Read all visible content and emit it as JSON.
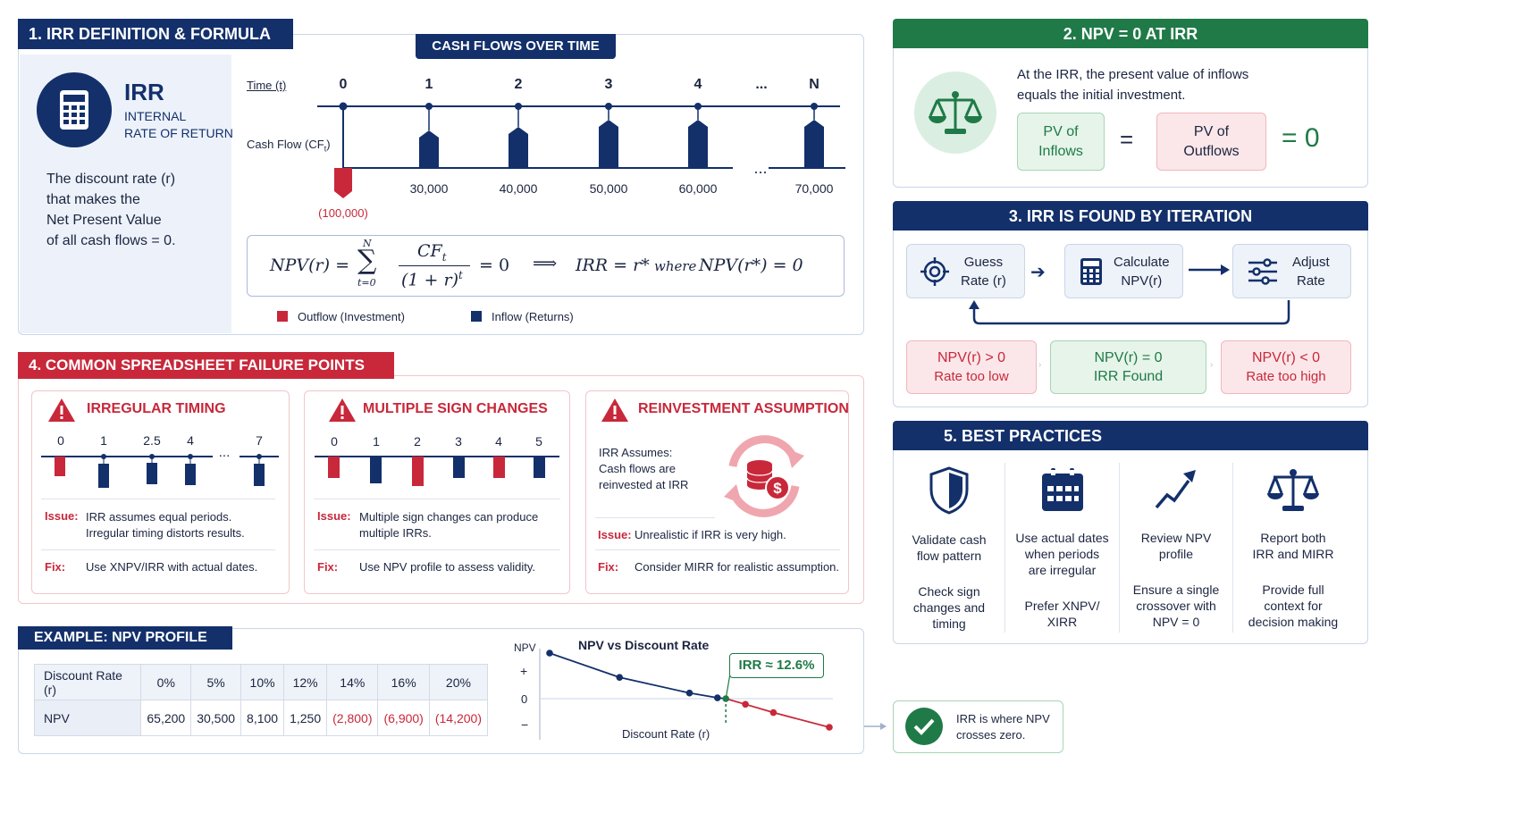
{
  "section1": {
    "title": "1. IRR DEFINITION & FORMULA",
    "irr_title": "IRR",
    "irr_sub1": "INTERNAL",
    "irr_sub2": "RATE OF RETURN",
    "desc": [
      "The discount rate (r)",
      "that makes the",
      "Net Present Value",
      "of all cash flows = 0."
    ],
    "cashflows_title": "CASH FLOWS OVER TIME",
    "time_label": "Time (t)",
    "cf_label": "Cash Flow (CF",
    "cf_sub": "t",
    "cf_close": ")",
    "times": [
      "0",
      "1",
      "2",
      "3",
      "4",
      "...",
      "N"
    ],
    "cf_values": [
      "(100,000)",
      "30,000",
      "40,000",
      "50,000",
      "60,000",
      "...",
      "70,000"
    ],
    "formula": {
      "lhs": "NPV(r) =",
      "sum_top": "N",
      "sum_bottom": "t=0",
      "num": "CF",
      "num_sub": "t",
      "den": "(1 + r)",
      "den_sup": "t",
      "eq0": "= 0",
      "arrow": "⟹",
      "rhs1": "IRR = r*",
      "where": "where",
      "rhs2": "NPV(r*) = 0"
    },
    "legend_out": "Outflow (Investment)",
    "legend_in": "Inflow (Returns)"
  },
  "section2": {
    "title": "2. NPV = 0 AT IRR",
    "text1": "At the IRR, the present value of inflows",
    "text2": "equals the initial investment.",
    "pv_in": [
      "PV of",
      "Inflows"
    ],
    "eq": "=",
    "pv_out": [
      "PV of",
      "Outflows"
    ],
    "result": "= 0"
  },
  "section3": {
    "title": "3. IRR IS FOUND BY ITERATION",
    "steps": [
      [
        "Guess",
        "Rate (r)"
      ],
      [
        "Calculate",
        "NPV(r)"
      ],
      [
        "Adjust",
        "Rate"
      ]
    ],
    "outcomes": [
      [
        "NPV(r) > 0",
        "Rate too low"
      ],
      [
        "NPV(r) = 0",
        "IRR Found"
      ],
      [
        "NPV(r) < 0",
        "Rate too high"
      ]
    ]
  },
  "section4": {
    "title": "4. COMMON SPREADSHEET FAILURE POINTS",
    "cards": [
      {
        "title": "IRREGULAR TIMING",
        "ticks": [
          "0",
          "1",
          "2.5",
          "4",
          "...",
          "7"
        ],
        "issue_label": "Issue:",
        "issue": [
          "IRR assumes equal periods.",
          "Irregular timing distorts results."
        ],
        "fix_label": "Fix:",
        "fix": "Use XNPV/IRR with actual dates."
      },
      {
        "title": "MULTIPLE SIGN CHANGES",
        "ticks": [
          "0",
          "1",
          "2",
          "3",
          "4",
          "5"
        ],
        "issue_label": "Issue:",
        "issue": [
          "Multiple sign changes can produce",
          "multiple IRRs."
        ],
        "fix_label": "Fix:",
        "fix": "Use NPV profile to assess validity."
      },
      {
        "title": "REINVESTMENT ASSUMPTION",
        "assume": [
          "IRR Assumes:",
          "Cash flows are",
          "reinvested at IRR"
        ],
        "issue_label": "Issue:",
        "issue": [
          "Unrealistic if IRR is very high."
        ],
        "fix_label": "Fix:",
        "fix": "Consider MIRR for realistic assumption."
      }
    ]
  },
  "section5": {
    "title": "5. BEST PRACTICES",
    "items": [
      {
        "icon": "shield-icon",
        "head": [
          "Validate cash",
          "flow pattern"
        ],
        "body": [
          "Check sign",
          "changes and",
          "timing"
        ]
      },
      {
        "icon": "calendar-icon",
        "head": [
          "Use actual dates",
          "when periods",
          "are irregular"
        ],
        "body": [
          "Prefer XNPV/",
          "XIRR"
        ]
      },
      {
        "icon": "trend-icon",
        "head": [
          "Review NPV",
          "profile"
        ],
        "body": [
          "Ensure a single",
          "crossover with",
          "NPV = 0"
        ]
      },
      {
        "icon": "scales-icon",
        "head": [
          "Report both",
          "IRR and MIRR"
        ],
        "body": [
          "Provide full",
          "context for",
          "decision making"
        ]
      }
    ]
  },
  "example": {
    "title": "EXAMPLE: NPV PROFILE",
    "table": {
      "row1_label": "Discount Rate (r)",
      "rates": [
        "0%",
        "5%",
        "10%",
        "12%",
        "14%",
        "16%",
        "20%"
      ],
      "row2_label": "NPV",
      "npvs": [
        "65,200",
        "30,500",
        "8,100",
        "1,250",
        "(2,800)",
        "(6,900)",
        "(14,200)"
      ]
    },
    "callout": "IRR ≈ 12.6%",
    "conclusion": [
      "IRR is where NPV",
      "crosses zero."
    ]
  },
  "chart_data": {
    "type": "line",
    "title": "NPV vs Discount Rate",
    "xlabel": "Discount Rate (r)",
    "ylabel": "NPV",
    "y_ticks": [
      "+",
      "0",
      "−"
    ],
    "x": [
      0,
      5,
      10,
      12,
      14,
      16,
      20
    ],
    "values": [
      65200,
      30500,
      8100,
      1250,
      -2800,
      -6900,
      -14200
    ],
    "irr": 12.6,
    "ylim": [
      -20000,
      70000
    ],
    "grid": false,
    "colors": {
      "positive": "#13306b",
      "negative": "#c8283a",
      "irr_marker": "#1f7a47"
    }
  },
  "colors": {
    "navy": "#13306b",
    "red": "#c8283a",
    "green": "#1f7a47"
  }
}
